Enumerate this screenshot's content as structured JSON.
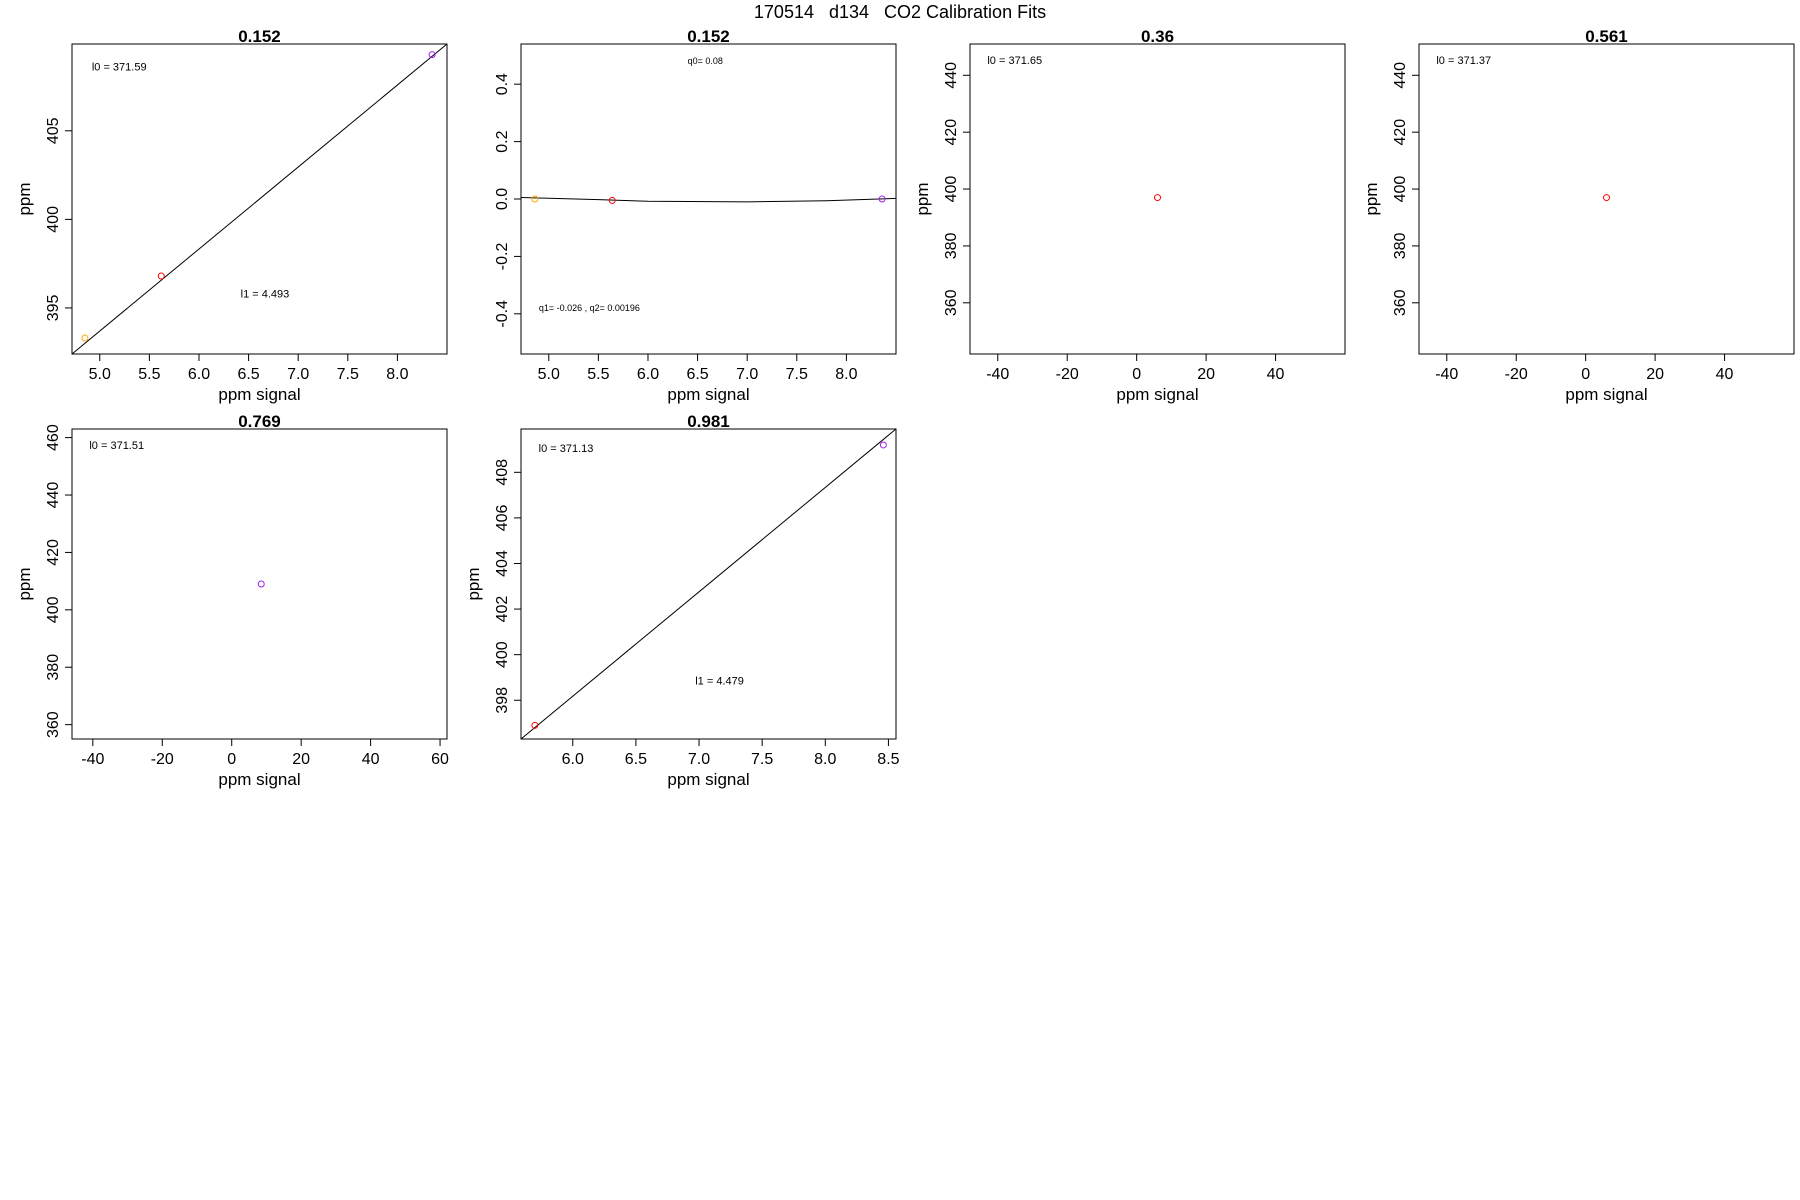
{
  "figure": {
    "title": "170514   d134   CO2 Calibration Fits"
  },
  "chart_data": [
    {
      "type": "scatter",
      "title": "0.152",
      "xlabel": "ppm signal",
      "ylabel": "ppm",
      "xlim": [
        4.72,
        8.5
      ],
      "ylim": [
        392.4,
        409.9
      ],
      "xticks": [
        5.0,
        5.5,
        6.0,
        6.5,
        7.0,
        7.5,
        8.0
      ],
      "xtick_labels": [
        "5.0",
        "5.5",
        "6.0",
        "6.5",
        "7.0",
        "7.5",
        "8.0"
      ],
      "yticks": [
        395,
        400,
        405
      ],
      "ytick_labels": [
        "395",
        "400",
        "405"
      ],
      "points": [
        {
          "x": 4.85,
          "y": 393.3,
          "color": "#ffa500"
        },
        {
          "x": 5.62,
          "y": 396.8,
          "color": "#ff0000"
        },
        {
          "x": 8.35,
          "y": 409.3,
          "color": "#a020f0"
        }
      ],
      "line": [
        [
          4.72,
          392.4
        ],
        [
          8.5,
          409.9
        ]
      ],
      "annotations": [
        {
          "text": "l0 =  371.59",
          "x": 4.92,
          "y": 408.4,
          "size": 11
        },
        {
          "text": "l1 =  4.493",
          "x": 6.42,
          "y": 395.6,
          "size": 11
        }
      ]
    },
    {
      "type": "scatter",
      "title": "0.152",
      "xlabel": "ppm signal",
      "ylabel": "",
      "xlim": [
        4.72,
        8.5
      ],
      "ylim": [
        -0.54,
        0.54
      ],
      "xticks": [
        5.0,
        5.5,
        6.0,
        6.5,
        7.0,
        7.5,
        8.0
      ],
      "xtick_labels": [
        "5.0",
        "5.5",
        "6.0",
        "6.5",
        "7.0",
        "7.5",
        "8.0"
      ],
      "yticks": [
        -0.4,
        -0.2,
        0.0,
        0.2,
        0.4
      ],
      "ytick_labels": [
        "-0.4",
        "-0.2",
        "0.0",
        "0.2",
        "0.4"
      ],
      "points": [
        {
          "x": 4.86,
          "y": 0.0,
          "color": "#ffa500"
        },
        {
          "x": 5.64,
          "y": -0.005,
          "color": "#ff0000"
        },
        {
          "x": 8.36,
          "y": 0.0,
          "color": "#a020f0"
        }
      ],
      "line": [
        [
          4.72,
          0.005
        ],
        [
          5.5,
          -0.002
        ],
        [
          6.0,
          -0.008
        ],
        [
          7.0,
          -0.01
        ],
        [
          7.8,
          -0.006
        ],
        [
          8.5,
          0.002
        ]
      ],
      "annotations": [
        {
          "text": "q0= 0.08",
          "x": 6.4,
          "y": 0.47,
          "size": 9
        },
        {
          "text": "q1= -0.026 , q2= 0.00196",
          "x": 4.9,
          "y": -0.39,
          "size": 9
        }
      ]
    },
    {
      "type": "scatter",
      "title": "0.36",
      "xlabel": "ppm signal",
      "ylabel": "ppm",
      "xlim": [
        -48,
        60
      ],
      "ylim": [
        342,
        451
      ],
      "xticks": [
        -40,
        -20,
        0,
        20,
        40
      ],
      "xtick_labels": [
        "-40",
        "-20",
        "0",
        "20",
        "40"
      ],
      "yticks": [
        360,
        380,
        400,
        420,
        440
      ],
      "ytick_labels": [
        "360",
        "380",
        "400",
        "420",
        "440"
      ],
      "points": [
        {
          "x": 6,
          "y": 397,
          "color": "#ff0000"
        }
      ],
      "annotations": [
        {
          "text": "l0 =  371.65",
          "x": -43,
          "y": 444,
          "size": 11
        }
      ]
    },
    {
      "type": "scatter",
      "title": "0.561",
      "xlabel": "ppm signal",
      "ylabel": "ppm",
      "xlim": [
        -48,
        60
      ],
      "ylim": [
        342,
        451
      ],
      "xticks": [
        -40,
        -20,
        0,
        20,
        40
      ],
      "xtick_labels": [
        "-40",
        "-20",
        "0",
        "20",
        "40"
      ],
      "yticks": [
        360,
        380,
        400,
        420,
        440
      ],
      "ytick_labels": [
        "360",
        "380",
        "400",
        "420",
        "440"
      ],
      "points": [
        {
          "x": 6,
          "y": 397,
          "color": "#ff0000"
        }
      ],
      "annotations": [
        {
          "text": "l0 =  371.37",
          "x": -43,
          "y": 444,
          "size": 11
        }
      ]
    },
    {
      "type": "scatter",
      "title": "0.769",
      "xlabel": "ppm signal",
      "ylabel": "ppm",
      "xlim": [
        -46,
        62
      ],
      "ylim": [
        355,
        463
      ],
      "xticks": [
        -40,
        -20,
        0,
        20,
        40,
        60
      ],
      "xtick_labels": [
        "-40",
        "-20",
        "0",
        "20",
        "40",
        "60"
      ],
      "yticks": [
        360,
        380,
        400,
        420,
        440,
        460
      ],
      "ytick_labels": [
        "360",
        "380",
        "400",
        "420",
        "440",
        "460"
      ],
      "points": [
        {
          "x": 8.5,
          "y": 409,
          "color": "#a020f0"
        }
      ],
      "annotations": [
        {
          "text": "l0 =  371.51",
          "x": -41,
          "y": 456,
          "size": 11
        }
      ]
    },
    {
      "type": "scatter",
      "title": "0.981",
      "xlabel": "ppm signal",
      "ylabel": "ppm",
      "xlim": [
        5.59,
        8.56
      ],
      "ylim": [
        396.3,
        409.9
      ],
      "xticks": [
        6.0,
        6.5,
        7.0,
        7.5,
        8.0,
        8.5
      ],
      "xtick_labels": [
        "6.0",
        "6.5",
        "7.0",
        "7.5",
        "8.0",
        "8.5"
      ],
      "yticks": [
        398,
        400,
        402,
        404,
        406,
        408
      ],
      "ytick_labels": [
        "398",
        "400",
        "402",
        "404",
        "406",
        "408"
      ],
      "points": [
        {
          "x": 5.7,
          "y": 396.9,
          "color": "#ff0000"
        },
        {
          "x": 8.46,
          "y": 409.2,
          "color": "#a020f0"
        }
      ],
      "line": [
        [
          5.59,
          396.3
        ],
        [
          8.56,
          409.9
        ]
      ],
      "annotations": [
        {
          "text": "l0 =  371.13",
          "x": 5.73,
          "y": 408.9,
          "size": 11
        },
        {
          "text": "l1 =  4.479",
          "x": 6.97,
          "y": 398.7,
          "size": 11
        }
      ]
    }
  ]
}
